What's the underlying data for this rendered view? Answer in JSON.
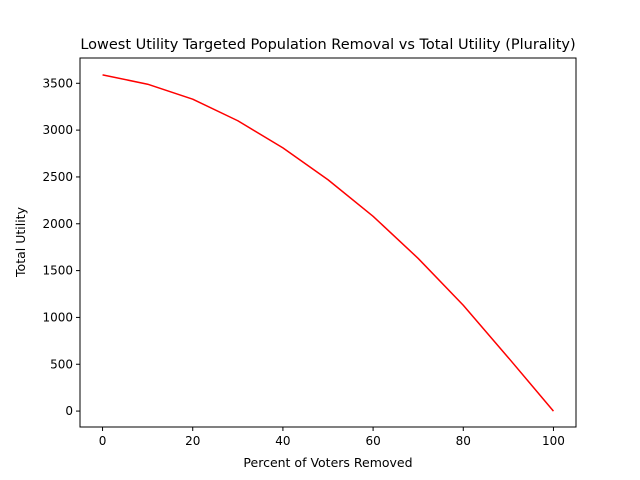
{
  "chart_data": {
    "type": "line",
    "title": "Lowest Utility Targeted Population Removal vs Total Utility (Plurality)",
    "xlabel": "Percent of Voters Removed",
    "ylabel": "Total Utility",
    "xlim": [
      -5,
      105
    ],
    "ylim": [
      -170,
      3770
    ],
    "xticks": [
      0,
      20,
      40,
      60,
      80,
      100
    ],
    "yticks": [
      0,
      500,
      1000,
      1500,
      2000,
      2500,
      3000,
      3500
    ],
    "grid": false,
    "legend": "none",
    "series": [
      {
        "color": "#ff0000",
        "x": [
          0,
          10,
          20,
          30,
          40,
          50,
          60,
          70,
          80,
          90,
          100
        ],
        "y": [
          3590,
          3490,
          3330,
          3100,
          2810,
          2470,
          2080,
          1630,
          1130,
          570,
          0
        ]
      }
    ]
  }
}
